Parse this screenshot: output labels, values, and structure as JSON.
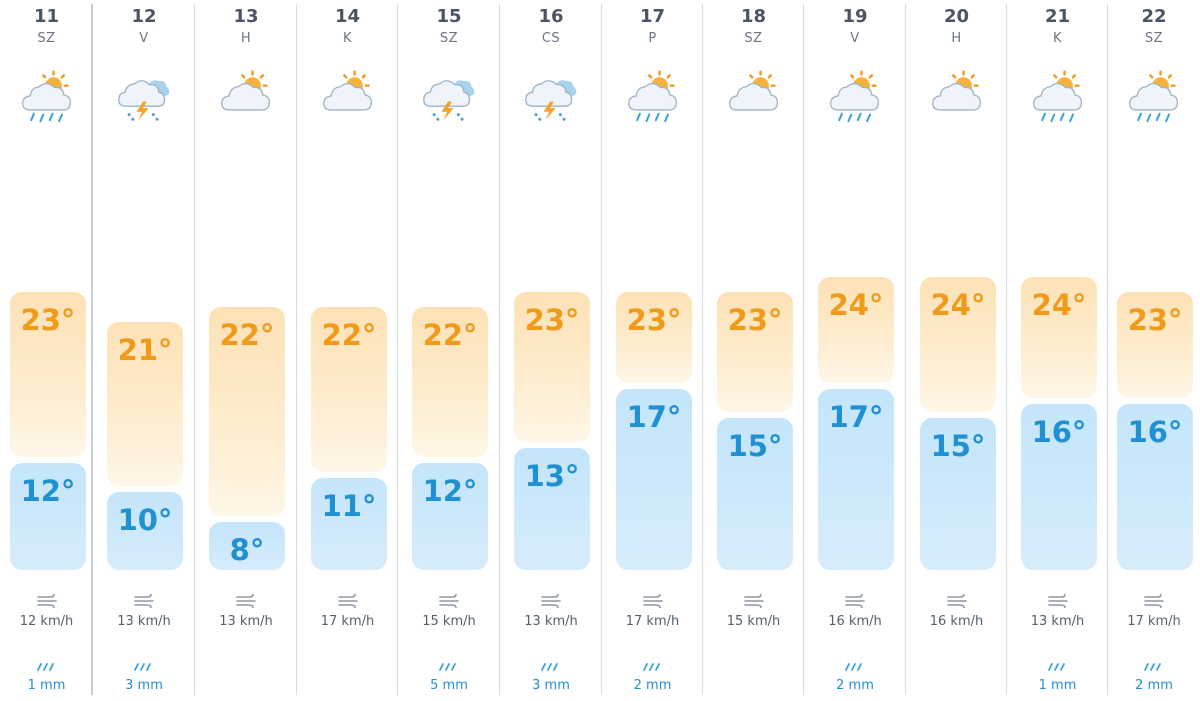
{
  "forecast": {
    "days": [
      {
        "day": "11",
        "weekday": "SZ",
        "icon": "cloud-sun-rain-icon",
        "high": "23°",
        "low": "12°",
        "wind": "12 km/h",
        "rain": "1 mm"
      },
      {
        "day": "12",
        "weekday": "V",
        "icon": "cloud-thunderstorm-rain-icon",
        "high": "21°",
        "low": "10°",
        "wind": "13 km/h",
        "rain": "3 mm"
      },
      {
        "day": "13",
        "weekday": "H",
        "icon": "partly-cloudy-icon",
        "high": "22°",
        "low": "8°",
        "wind": "13 km/h",
        "rain": ""
      },
      {
        "day": "14",
        "weekday": "K",
        "icon": "partly-cloudy-icon",
        "high": "22°",
        "low": "11°",
        "wind": "17 km/h",
        "rain": ""
      },
      {
        "day": "15",
        "weekday": "SZ",
        "icon": "cloud-thunderstorm-rain-icon",
        "high": "22°",
        "low": "12°",
        "wind": "15 km/h",
        "rain": "5 mm"
      },
      {
        "day": "16",
        "weekday": "CS",
        "icon": "cloud-thunderstorm-rain-icon",
        "high": "23°",
        "low": "13°",
        "wind": "13 km/h",
        "rain": "3 mm"
      },
      {
        "day": "17",
        "weekday": "P",
        "icon": "cloud-sun-rain-icon",
        "high": "23°",
        "low": "17°",
        "wind": "17 km/h",
        "rain": "2 mm"
      },
      {
        "day": "18",
        "weekday": "SZ",
        "icon": "partly-cloudy-icon",
        "high": "23°",
        "low": "15°",
        "wind": "15 km/h",
        "rain": ""
      },
      {
        "day": "19",
        "weekday": "V",
        "icon": "cloud-sun-rain-icon",
        "high": "24°",
        "low": "17°",
        "wind": "16 km/h",
        "rain": "2 mm"
      },
      {
        "day": "20",
        "weekday": "H",
        "icon": "partly-cloudy-icon",
        "high": "24°",
        "low": "15°",
        "wind": "16 km/h",
        "rain": ""
      },
      {
        "day": "21",
        "weekday": "K",
        "icon": "cloud-sun-rain-icon",
        "high": "24°",
        "low": "16°",
        "wind": "13 km/h",
        "rain": "1 mm"
      },
      {
        "day": "22",
        "weekday": "SZ",
        "icon": "cloud-sun-rain-icon",
        "high": "23°",
        "low": "16°",
        "wind": "17 km/h",
        "rain": "2 mm"
      }
    ]
  },
  "colors": {
    "high_text": "#f09a1a",
    "low_text": "#1f90d2",
    "high_bar": "#fde1b6",
    "low_bar": "#c4e5fa",
    "divider": "#d8dde3"
  }
}
